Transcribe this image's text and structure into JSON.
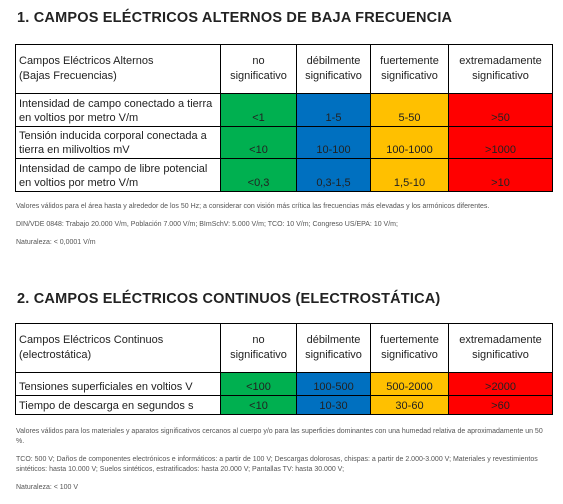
{
  "sections": [
    {
      "title": "1. CAMPOS ELÉCTRICOS ALTERNOS  DE BAJA FRECUENCIA",
      "table": {
        "header": [
          "Campos Eléctricos Alternos\n(Bajas Frecuencias)",
          "no significativo",
          "débilmente significativo",
          "fuertemente significativo",
          "extremadamente significativo"
        ],
        "rows": [
          [
            "Intensidad de campo conectado a tierra en voltios por metro V/m",
            "<1",
            "1-5",
            "5-50",
            ">50"
          ],
          [
            "Tensión inducida corporal conectada a tierra en milivoltios mV",
            "<10",
            "10-100",
            "100-1000",
            ">1000"
          ],
          [
            "Intensidad de campo de libre potencial en voltios por metro V/m",
            "<0,3",
            "0,3-1,5",
            "1,5-10",
            ">10"
          ]
        ]
      },
      "notes": [
        "Valores válidos para el área hasta y alrededor de los 50 Hz; a considerar con visión más crítica las frecuencias más elevadas y los armónicos diferentes.",
        "DIN/VDE 0848: Trabajo 20.000 V/m, Población 7.000 V/m; BImSchV: 5.000 V/m; TCO: 10 V/m; Congreso US/EPA: 10 V/m;",
        "Naturaleza: < 0,0001 V/m"
      ]
    },
    {
      "title": "2. CAMPOS ELÉCTRICOS CONTINUOS  (ELECTROSTÁTICA)",
      "table": {
        "header": [
          "Campos Eléctricos Continuos\n(electrostática)",
          "no significativo",
          "débilmente significativo",
          "fuertemente significativo",
          "extremadamente significativo"
        ],
        "rows": [
          [
            "Tensiones superficiales en voltios V",
            "<100",
            "100-500",
            "500-2000",
            ">2000"
          ],
          [
            "Tiempo de descarga en segundos s",
            "<10",
            "10-30",
            "30-60",
            ">60"
          ]
        ]
      },
      "notes": [
        "Valores válidos para los materiales y aparatos significativos cercanos al cuerpo y/o para las superficies dominantes con una humedad relativa de aproximadamente un 50 %.",
        "TCO: 500 V; Daños de componentes electrónicos e informáticos: a partir de 100 V; Descargas dolorosas, chispas: a partir de 2.000-3.000 V; Materiales y revestimientos sintéticos: hasta 10.000 V; Suelos sintéticos, estratificados: hasta 20.000 V; Pantallas TV: hasta 30.000 V;",
        "Naturaleza: < 100 V"
      ]
    }
  ]
}
